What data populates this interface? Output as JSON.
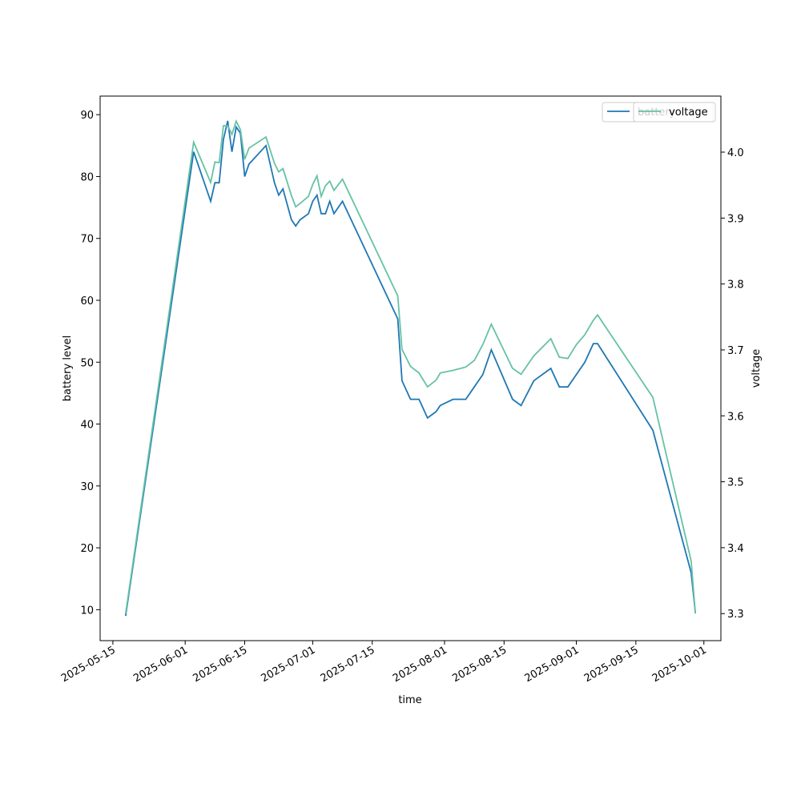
{
  "chart_data": {
    "type": "line",
    "x": [
      "2025-05-18",
      "2025-06-03",
      "2025-06-07",
      "2025-06-08",
      "2025-06-09",
      "2025-06-10",
      "2025-06-11",
      "2025-06-12",
      "2025-06-13",
      "2025-06-14",
      "2025-06-15",
      "2025-06-16",
      "2025-06-20",
      "2025-06-22",
      "2025-06-23",
      "2025-06-24",
      "2025-06-26",
      "2025-06-27",
      "2025-06-28",
      "2025-06-30",
      "2025-07-01",
      "2025-07-02",
      "2025-07-03",
      "2025-07-04",
      "2025-07-05",
      "2025-07-06",
      "2025-07-08",
      "2025-07-21",
      "2025-07-22",
      "2025-07-24",
      "2025-07-26",
      "2025-07-28",
      "2025-07-30",
      "2025-07-31",
      "2025-08-03",
      "2025-08-06",
      "2025-08-08",
      "2025-08-10",
      "2025-08-12",
      "2025-08-17",
      "2025-08-19",
      "2025-08-22",
      "2025-08-26",
      "2025-08-28",
      "2025-08-30",
      "2025-09-01",
      "2025-09-03",
      "2025-09-05",
      "2025-09-06",
      "2025-09-19",
      "2025-09-28",
      "2025-09-29"
    ],
    "series": [
      {
        "name": "battery",
        "color": "#1f77b4",
        "axis": "y",
        "values": [
          9,
          84,
          76,
          79,
          79,
          86,
          89,
          84,
          88,
          87,
          80,
          82,
          85,
          79,
          77,
          78,
          73,
          72,
          73,
          74,
          76,
          77,
          74,
          74,
          76,
          74,
          76,
          57,
          47,
          44,
          44,
          41,
          42,
          43,
          44,
          44,
          46,
          48,
          52,
          44,
          43,
          47,
          49,
          46,
          46,
          48,
          50,
          53,
          53,
          39,
          16,
          9.5
        ]
      },
      {
        "name": "voltage",
        "color": "#66c2a5",
        "axis": "y2",
        "values": [
          3.3,
          4.015,
          3.954,
          3.985,
          3.984,
          4.04,
          4.04,
          4.027,
          4.047,
          4.034,
          3.989,
          4.006,
          4.023,
          3.983,
          3.97,
          3.975,
          3.934,
          3.917,
          3.922,
          3.933,
          3.951,
          3.964,
          3.933,
          3.949,
          3.956,
          3.942,
          3.959,
          3.782,
          3.701,
          3.675,
          3.665,
          3.644,
          3.654,
          3.665,
          3.669,
          3.674,
          3.684,
          3.708,
          3.739,
          3.672,
          3.663,
          3.691,
          3.717,
          3.689,
          3.687,
          3.708,
          3.723,
          3.745,
          3.753,
          3.628,
          3.38,
          3.3
        ]
      }
    ],
    "xlabel": "time",
    "ylabel": "battery level",
    "y2label": "voltage",
    "xlim": [
      "2025-05-12",
      "2025-10-05"
    ],
    "xticks": [
      "2025-05-15",
      "2025-06-01",
      "2025-06-15",
      "2025-07-01",
      "2025-07-15",
      "2025-08-01",
      "2025-08-15",
      "2025-09-01",
      "2025-09-15",
      "2025-10-01"
    ],
    "ylim": [
      5,
      93
    ],
    "yticks": [
      10,
      20,
      30,
      40,
      50,
      60,
      70,
      80,
      90
    ],
    "y2lim": [
      3.259,
      4.085
    ],
    "y2ticks": [
      {
        "value": 3.3,
        "label": "3.3"
      },
      {
        "value": 3.4,
        "label": "3.4"
      },
      {
        "value": 3.5,
        "label": "3.5"
      },
      {
        "value": 3.6,
        "label": "3.6"
      },
      {
        "value": 3.7,
        "label": "3.7"
      },
      {
        "value": 3.8,
        "label": "3.8"
      },
      {
        "value": 3.9,
        "label": "3.9"
      },
      {
        "value": 4.0,
        "label": "4.0"
      }
    ],
    "legend": "upper right"
  }
}
